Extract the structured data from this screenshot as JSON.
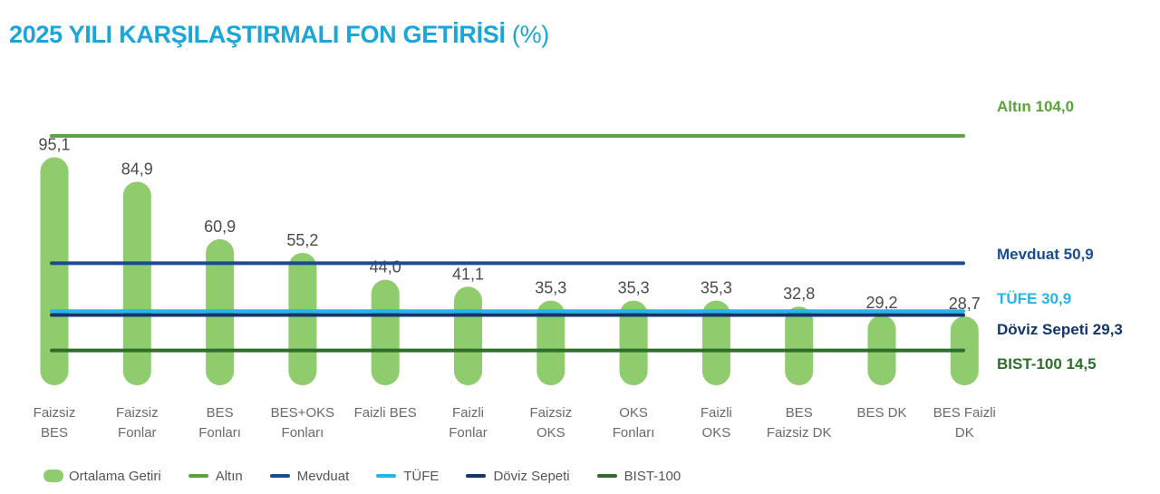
{
  "title": {
    "main": "2025 YILI KARŞILAŞTIRMALI FON GETİRİSİ",
    "unit": "(%)"
  },
  "colors": {
    "title": "#1aa6d8",
    "bar": "#8fcc6d",
    "altin": "#5aa33c",
    "mevduat": "#1a4c96",
    "tufe": "#27b4e8",
    "doviz": "#13346c",
    "bist": "#2e6e2a"
  },
  "chart_data": {
    "type": "bar",
    "categories": [
      [
        "Faizsiz",
        "BES"
      ],
      [
        "Faizsiz",
        "Fonlar"
      ],
      [
        "BES",
        "Fonları"
      ],
      [
        "BES+OKS",
        "Fonları"
      ],
      [
        "Faizli BES"
      ],
      [
        "Faizli",
        "Fonlar"
      ],
      [
        "Faizsiz",
        "OKS"
      ],
      [
        "OKS",
        "Fonları"
      ],
      [
        "Faizli",
        "OKS"
      ],
      [
        "BES",
        "Faizsiz DK"
      ],
      [
        "BES DK"
      ],
      [
        "BES Faizli",
        "DK"
      ]
    ],
    "values": [
      95.1,
      84.9,
      60.9,
      55.2,
      44.0,
      41.1,
      35.3,
      35.3,
      35.3,
      32.8,
      29.2,
      28.7
    ],
    "value_labels": [
      "95,1",
      "84,9",
      "60,9",
      "55,2",
      "44,0",
      "41,1",
      "35,3",
      "35,3",
      "35,3",
      "32,8",
      "29,2",
      "28,7"
    ],
    "series_name": "Ortalama Getiri",
    "reference_lines": [
      {
        "key": "altin",
        "name": "Altın",
        "value": 104.0,
        "label": "Altın 104,0"
      },
      {
        "key": "mevduat",
        "name": "Mevduat",
        "value": 50.9,
        "label": "Mevduat 50,9"
      },
      {
        "key": "tufe",
        "name": "TÜFE",
        "value": 30.9,
        "label": "TÜFE 30,9"
      },
      {
        "key": "doviz",
        "name": "Döviz Sepeti",
        "value": 29.3,
        "label": "Döviz Sepeti 29,3"
      },
      {
        "key": "bist",
        "name": "BIST-100",
        "value": 14.5,
        "label": "BIST-100 14,5"
      }
    ],
    "ylim": [
      0,
      104
    ],
    "grid": false,
    "legend_position": "bottom"
  }
}
